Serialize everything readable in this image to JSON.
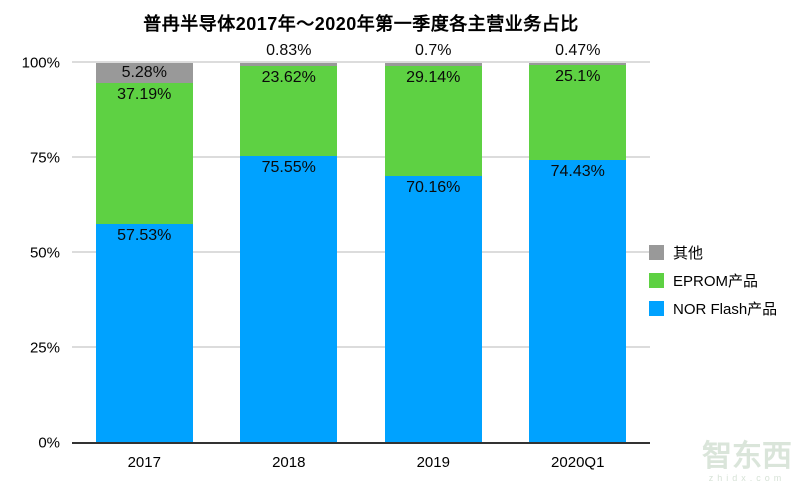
{
  "title": "普冉半导体2017年～2020年第一季度各主营业务占比",
  "watermark": {
    "logo": "智东西",
    "domain": "zhidx.com"
  },
  "colors": {
    "nor_flash": "#00a2ff",
    "eprom": "#5ed143",
    "other": "#999999",
    "axis": "#333333",
    "gridline": "#dcdcdc",
    "label_text": "#0a0a0a"
  },
  "chart_data": {
    "type": "bar",
    "stacked": true,
    "unit": "%",
    "title": "普冉半导体2017年～2020年第一季度各主营业务占比",
    "categories": [
      "2017",
      "2018",
      "2019",
      "2020Q1"
    ],
    "series": [
      {
        "name": "NOR Flash产品",
        "color_key": "nor_flash",
        "values": [
          57.53,
          75.55,
          70.16,
          74.43
        ],
        "labels": [
          "57.53%",
          "75.55%",
          "70.16%",
          "74.43%"
        ]
      },
      {
        "name": "EPROM产品",
        "color_key": "eprom",
        "values": [
          37.19,
          23.62,
          29.14,
          25.1
        ],
        "labels": [
          "37.19%",
          "23.62%",
          "29.14%",
          "25.1%"
        ]
      },
      {
        "name": "其他",
        "color_key": "other",
        "values": [
          5.28,
          0.83,
          0.7,
          0.47
        ],
        "labels": [
          "5.28%",
          "0.83%",
          "0.7%",
          "0.47%"
        ]
      }
    ],
    "y_axis": {
      "ticks": [
        "0%",
        "25%",
        "50%",
        "75%",
        "100%"
      ],
      "tick_values": [
        0,
        25,
        50,
        75,
        100
      ],
      "ylim": [
        0,
        100
      ],
      "grid": true
    },
    "legend": {
      "position": "right",
      "order": [
        "其他",
        "EPROM产品",
        "NOR Flash产品"
      ]
    }
  }
}
